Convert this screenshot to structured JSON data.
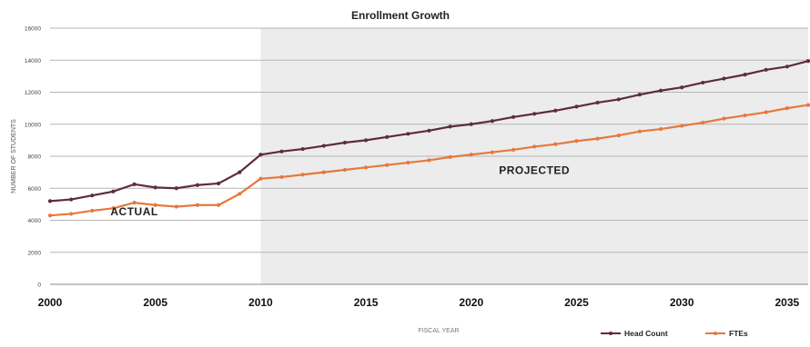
{
  "chart_data": {
    "type": "line",
    "title": "Enrollment Growth",
    "xlabel": "FISCAL YEAR",
    "ylabel": "NUMBER OF STUDENTS",
    "xlim": [
      2000,
      2036
    ],
    "ylim": [
      0,
      16000
    ],
    "x_ticks": [
      2000,
      2005,
      2010,
      2015,
      2020,
      2025,
      2030,
      2035
    ],
    "y_ticks": [
      0,
      2000,
      4000,
      6000,
      8000,
      10000,
      12000,
      14000,
      16000
    ],
    "grid": true,
    "legend_position": "bottom-right",
    "annotations": [
      {
        "text": "ACTUAL",
        "x": 2004,
        "y": 4300
      },
      {
        "text": "PROJECTED",
        "x": 2023,
        "y": 6900
      }
    ],
    "projected_region_start": 2010,
    "x": [
      2000,
      2001,
      2002,
      2003,
      2004,
      2005,
      2006,
      2007,
      2008,
      2009,
      2010,
      2011,
      2012,
      2013,
      2014,
      2015,
      2016,
      2017,
      2018,
      2019,
      2020,
      2021,
      2022,
      2023,
      2024,
      2025,
      2026,
      2027,
      2028,
      2029,
      2030,
      2031,
      2032,
      2033,
      2034,
      2035,
      2036
    ],
    "series": [
      {
        "name": "Head Count",
        "color": "#5e2b3f",
        "values": [
          5200,
          5300,
          5550,
          5800,
          6250,
          6050,
          6000,
          6200,
          6300,
          7000,
          8100,
          8300,
          8450,
          8650,
          8850,
          9000,
          9200,
          9400,
          9600,
          9850,
          10000,
          10200,
          10450,
          10650,
          10850,
          11100,
          11350,
          11550,
          11850,
          12100,
          12300,
          12600,
          12850,
          13100,
          13400,
          13600,
          13950
        ]
      },
      {
        "name": "FTEs",
        "color": "#e6783c",
        "values": [
          4300,
          4400,
          4600,
          4750,
          5100,
          4950,
          4850,
          4950,
          4950,
          5650,
          6600,
          6700,
          6850,
          7000,
          7150,
          7300,
          7450,
          7600,
          7750,
          7950,
          8100,
          8250,
          8400,
          8600,
          8750,
          8950,
          9100,
          9300,
          9550,
          9700,
          9900,
          10100,
          10350,
          10550,
          10750,
          11000,
          11200
        ]
      }
    ]
  }
}
